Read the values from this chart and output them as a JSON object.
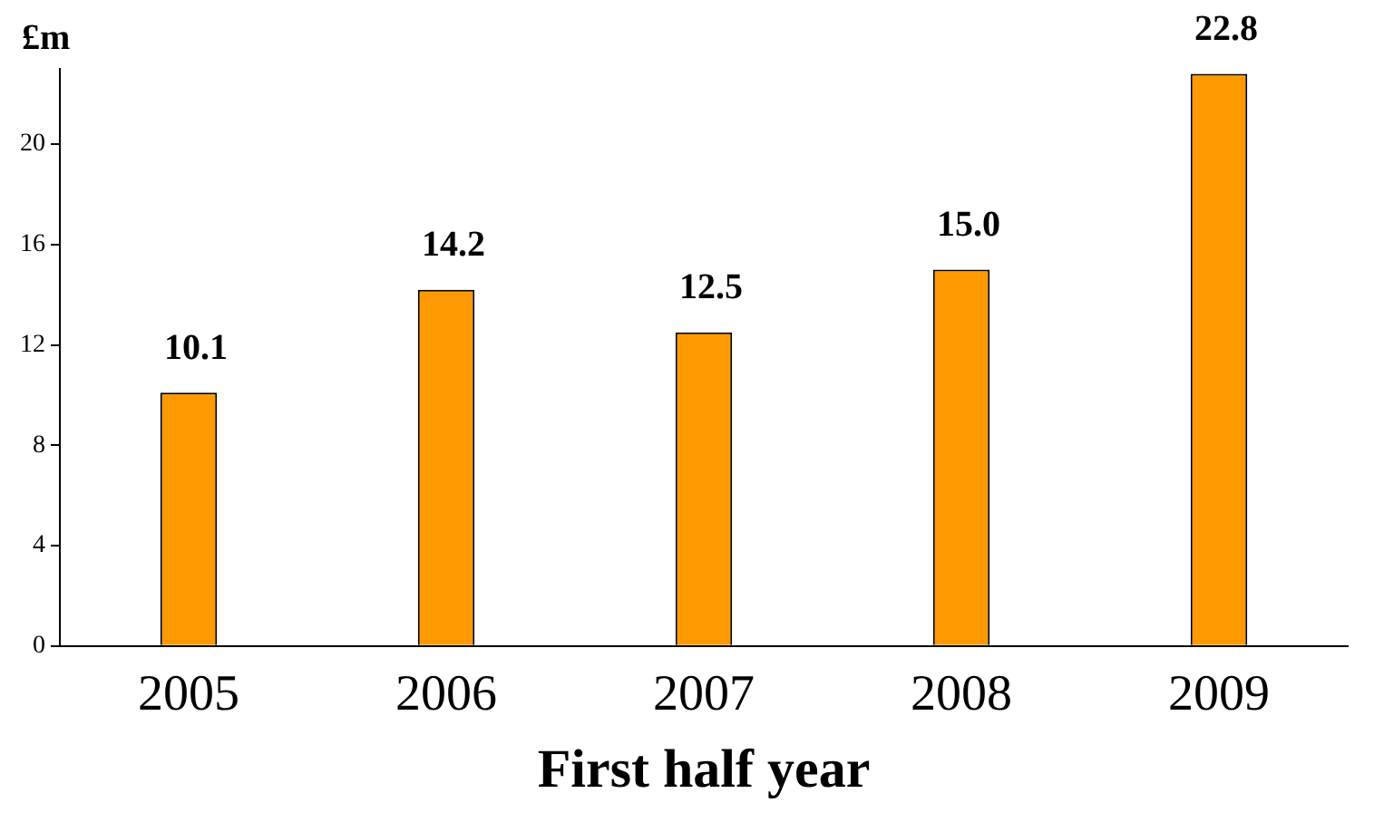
{
  "chart_data": {
    "type": "bar",
    "xlabel": "First half year",
    "ylabel": "£m",
    "categories": [
      "2005",
      "2006",
      "2007",
      "2008",
      "2009"
    ],
    "values": [
      10.1,
      14.2,
      12.5,
      15.0,
      22.8
    ],
    "value_labels": [
      "10.1",
      "14.2",
      "12.5",
      "15.0",
      "22.8"
    ],
    "color": "#ff9900",
    "ylim": [
      0,
      23
    ],
    "yticks": [
      0,
      4,
      8,
      12,
      16,
      20
    ],
    "grid": false,
    "legend": false
  }
}
